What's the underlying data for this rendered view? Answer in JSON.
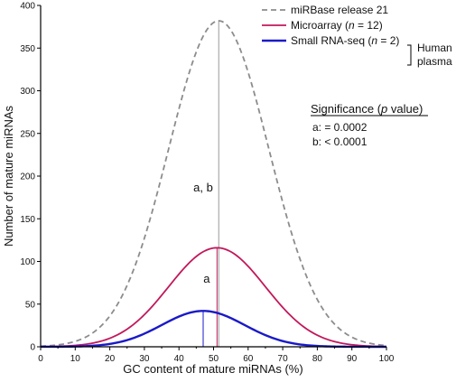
{
  "chart_data": {
    "type": "line",
    "title": "",
    "xlabel": "GC content of mature miRNAs (%)",
    "ylabel": "Number of mature miRNAs",
    "xlim": [
      0,
      100
    ],
    "ylim": [
      0,
      400
    ],
    "xticks": [
      "0",
      "10",
      "20",
      "30",
      "40",
      "50",
      "60",
      "70",
      "80",
      "90",
      "100"
    ],
    "yticks": [
      "0",
      "50",
      "100",
      "150",
      "200",
      "250",
      "300",
      "350",
      "400"
    ],
    "grid": false,
    "legend_position": "top-right",
    "series": [
      {
        "name": "miRBase release 21",
        "name_parts": [
          {
            "text": "miRBase release 21",
            "italic": false
          }
        ],
        "color": "#8c8c8c",
        "style": "dashed",
        "peak_x": 51.5,
        "peak_y": 382,
        "sd": 14.5,
        "median_line_color": "#9a9a9a"
      },
      {
        "name": "Microarray (n = 12)",
        "name_parts": [
          {
            "text": "Microarray (",
            "italic": false
          },
          {
            "text": "n",
            "italic": true
          },
          {
            "text": " = 12)",
            "italic": false
          }
        ],
        "color": "#c2185b",
        "style": "solid",
        "peak_x": 51,
        "peak_y": 116,
        "sd": 14,
        "median_line_color": "#c2185b"
      },
      {
        "name": "Small RNA-seq (n = 2)",
        "name_parts": [
          {
            "text": "Small RNA-seq (",
            "italic": false
          },
          {
            "text": "n",
            "italic": true
          },
          {
            "text": " = 2)",
            "italic": false
          }
        ],
        "color": "#1a1ac8",
        "style": "solid",
        "peak_x": 47,
        "peak_y": 42,
        "sd": 12,
        "median_line_color": "#1a1ac8"
      }
    ],
    "annotations": [
      {
        "text": "a, b",
        "x": 47,
        "y": 182
      },
      {
        "text": "a",
        "x": 48,
        "y": 75
      }
    ],
    "bracket_label": [
      "Human",
      "plasma"
    ],
    "significance": {
      "title_parts": [
        {
          "text": "Significance (",
          "italic": false
        },
        {
          "text": "p",
          "italic": true
        },
        {
          "text": " value)",
          "italic": false
        }
      ],
      "lines": [
        "a: = 0.0002",
        "b: < 0.0001"
      ]
    }
  },
  "colors": {
    "axis": "#000000",
    "background": "#ffffff"
  }
}
